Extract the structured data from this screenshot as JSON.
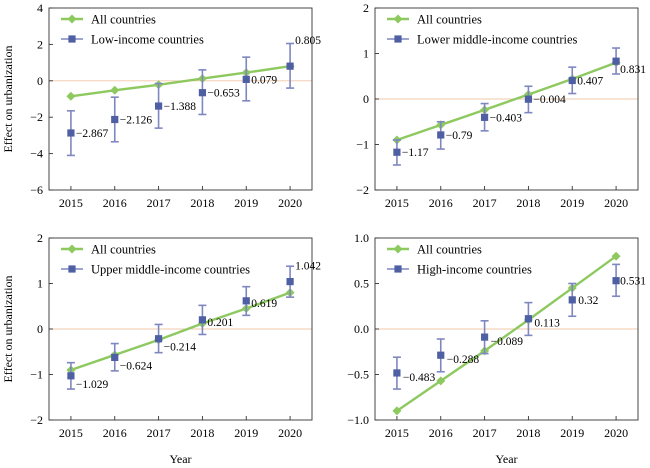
{
  "colors": {
    "all": "#8dc95f",
    "income": "#4f5fa3",
    "errorbar": "#7f87c0",
    "zero": "#f0c8a8"
  },
  "chart_data": [
    {
      "type": "line",
      "x": [
        2015,
        2016,
        2017,
        2018,
        2019,
        2020
      ],
      "xlabel": "",
      "ylabel": "Effect on urbanization",
      "ylim": [
        -6,
        4
      ],
      "yticks": [
        -6,
        -4,
        -2,
        0,
        2,
        4
      ],
      "ytick_labels": [
        "−6",
        "−4",
        "−2",
        "0",
        "2",
        "4"
      ],
      "legend_position": "top-left",
      "series": [
        {
          "name": "All countries",
          "values": [
            -0.85,
            -0.52,
            -0.22,
            0.12,
            0.45,
            0.8
          ]
        },
        {
          "name": "Low-income countries",
          "values": [
            -2.867,
            -2.126,
            -1.388,
            -0.653,
            0.079,
            0.805
          ],
          "err_low": [
            -4.1,
            -3.35,
            -2.6,
            -1.85,
            -1.1,
            -0.4
          ],
          "err_high": [
            -1.65,
            -0.9,
            -0.15,
            0.6,
            1.3,
            2.05
          ],
          "labels": [
            "−2.867",
            "−2.126",
            "−1.388",
            "−0.653",
            "0.079",
            "0.805"
          ]
        }
      ]
    },
    {
      "type": "line",
      "x": [
        2015,
        2016,
        2017,
        2018,
        2019,
        2020
      ],
      "xlabel": "",
      "ylabel": "",
      "ylim": [
        -2,
        2
      ],
      "yticks": [
        -2,
        -1,
        0,
        1,
        2
      ],
      "ytick_labels": [
        "−2",
        "−1",
        "0",
        "1",
        "2"
      ],
      "legend_position": "top-left",
      "series": [
        {
          "name": "All countries",
          "values": [
            -0.9,
            -0.57,
            -0.24,
            0.1,
            0.44,
            0.8
          ]
        },
        {
          "name": "Lower middle-income countries",
          "values": [
            -1.17,
            -0.79,
            -0.403,
            -0.004,
            0.407,
            0.831
          ],
          "err_low": [
            -1.45,
            -1.1,
            -0.7,
            -0.3,
            0.12,
            0.55
          ],
          "err_high": [
            -0.9,
            -0.5,
            -0.1,
            0.28,
            0.7,
            1.12
          ],
          "labels": [
            "−1.17",
            "−0.79",
            "−0.403",
            "−0.004",
            "0.407",
            "0.831"
          ]
        }
      ]
    },
    {
      "type": "line",
      "x": [
        2015,
        2016,
        2017,
        2018,
        2019,
        2020
      ],
      "xlabel": "Year",
      "ylabel": "Effect on urbanization",
      "ylim": [
        -2,
        2
      ],
      "yticks": [
        -2,
        -1,
        0,
        1,
        2
      ],
      "ytick_labels": [
        "−2",
        "−1",
        "0",
        "1",
        "2"
      ],
      "legend_position": "top-left",
      "series": [
        {
          "name": "All countries",
          "values": [
            -0.9,
            -0.57,
            -0.24,
            0.12,
            0.45,
            0.8
          ]
        },
        {
          "name": "Upper middle-income countries",
          "values": [
            -1.029,
            -0.624,
            -0.214,
            0.201,
            0.619,
            1.042
          ],
          "err_low": [
            -1.32,
            -0.92,
            -0.52,
            -0.12,
            0.3,
            0.7
          ],
          "err_high": [
            -0.74,
            -0.32,
            0.1,
            0.52,
            0.93,
            1.38
          ],
          "labels": [
            "−1.029",
            "−0.624",
            "−0.214",
            "0.201",
            "0.619",
            "1.042"
          ]
        }
      ]
    },
    {
      "type": "line",
      "x": [
        2015,
        2016,
        2017,
        2018,
        2019,
        2020
      ],
      "xlabel": "Year",
      "ylabel": "",
      "ylim": [
        -1,
        1
      ],
      "yticks": [
        -1,
        -0.5,
        0,
        0.5,
        1
      ],
      "ytick_labels": [
        "−1.0",
        "−0.5",
        "0.0",
        "0.5",
        "1.0"
      ],
      "legend_position": "top-left",
      "series": [
        {
          "name": "All countries",
          "values": [
            -0.9,
            -0.57,
            -0.24,
            0.1,
            0.45,
            0.8
          ]
        },
        {
          "name": "High-income countries",
          "values": [
            -0.483,
            -0.288,
            -0.089,
            0.113,
            0.32,
            0.531
          ],
          "err_low": [
            -0.66,
            -0.47,
            -0.27,
            -0.07,
            0.14,
            0.36
          ],
          "err_high": [
            -0.31,
            -0.11,
            0.09,
            0.29,
            0.5,
            0.71
          ],
          "labels": [
            "−0.483",
            "−0.288",
            "−0.089",
            "0.113",
            "0.32",
            "0.531"
          ]
        }
      ]
    }
  ]
}
